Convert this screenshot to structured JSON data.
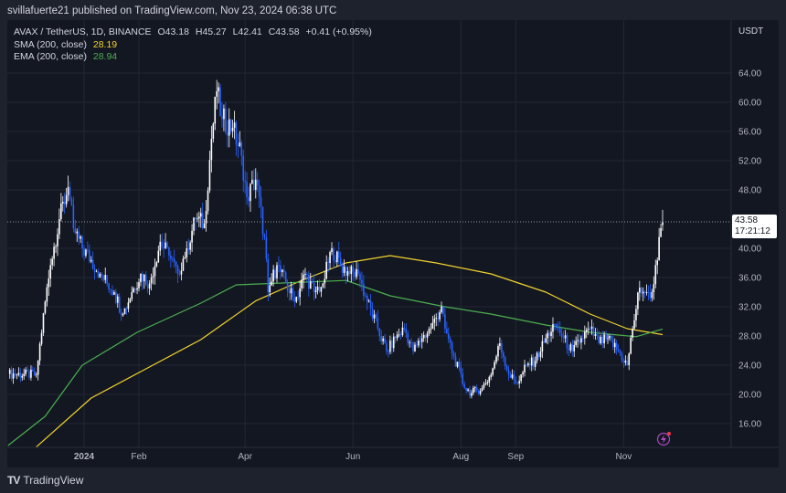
{
  "header": {
    "publish_text": "svillafuerte21 published on TradingView.com, Nov 23, 2024 06:38 UTC"
  },
  "legend": {
    "symbol": "AVAX / TetherUS, 1D, BINANCE",
    "open": "O43.18",
    "high": "H45.27",
    "low": "L42.41",
    "close": "C43.58",
    "change": "+0.41 (+0.95%)",
    "sma_label": "SMA (200, close)",
    "sma_value": "28.19",
    "ema_label": "EMA (200, close)",
    "ema_value": "28.94"
  },
  "price_axis": {
    "currency": "USDT",
    "last_price": "43.58",
    "countdown": "17:21:12"
  },
  "footer": {
    "brand": "TradingView"
  },
  "colors": {
    "background": "#131722",
    "grid": "#232735",
    "up": "#ffffff",
    "down": "#2962ff",
    "sma": "#f2d22e",
    "ema": "#4caf50"
  },
  "icons": [
    "tradingview-logo-icon",
    "lightning-icon"
  ],
  "chart_data": {
    "type": "candlestick",
    "symbol": "AVAX/USDT",
    "timeframe": "1D",
    "ylim": [
      12,
      68
    ],
    "y_ticks": [
      "16.00",
      "20.00",
      "24.00",
      "28.00",
      "32.00",
      "36.00",
      "40.00",
      "48.00",
      "52.00",
      "56.00",
      "60.00",
      "64.00"
    ],
    "x_ticks": [
      {
        "label": "2024",
        "date": "2024-01-01"
      },
      {
        "label": "Feb",
        "date": "2024-02-01"
      },
      {
        "label": "Apr",
        "date": "2024-04-01"
      },
      {
        "label": "Jun",
        "date": "2024-06-01"
      },
      {
        "label": "Aug",
        "date": "2024-08-01"
      },
      {
        "label": "Sep",
        "date": "2024-09-01"
      },
      {
        "label": "Nov",
        "date": "2024-11-01"
      }
    ],
    "grid": true,
    "price_path": [
      [
        "2023-11-19",
        22.8
      ],
      [
        "2023-12-05",
        22.7
      ],
      [
        "2023-12-10",
        32.7
      ],
      [
        "2023-12-13",
        37.7
      ],
      [
        "2023-12-18",
        44
      ],
      [
        "2023-12-23",
        48.4
      ],
      [
        "2023-12-26",
        42.7
      ],
      [
        "2023-12-31",
        40
      ],
      [
        "2024-01-05",
        38.4
      ],
      [
        "2024-01-10",
        36.5
      ],
      [
        "2024-01-18",
        34
      ],
      [
        "2024-01-23",
        31
      ],
      [
        "2024-01-28",
        34
      ],
      [
        "2024-02-02",
        36.5
      ],
      [
        "2024-02-07",
        35.2
      ],
      [
        "2024-02-13",
        40.9
      ],
      [
        "2024-02-18",
        39
      ],
      [
        "2024-02-23",
        36.5
      ],
      [
        "2024-02-28",
        40
      ],
      [
        "2024-03-04",
        44
      ],
      [
        "2024-03-09",
        43.4
      ],
      [
        "2024-03-13",
        55
      ],
      [
        "2024-03-16",
        61.5
      ],
      [
        "2024-03-19",
        57.7
      ],
      [
        "2024-03-25",
        56.5
      ],
      [
        "2024-03-30",
        52.7
      ],
      [
        "2024-04-02",
        47
      ],
      [
        "2024-04-07",
        49.4
      ],
      [
        "2024-04-12",
        41.5
      ],
      [
        "2024-04-14",
        34
      ],
      [
        "2024-04-19",
        37.7
      ],
      [
        "2024-04-24",
        35.2
      ],
      [
        "2024-04-29",
        32.7
      ],
      [
        "2024-05-05",
        36.5
      ],
      [
        "2024-05-10",
        34
      ],
      [
        "2024-05-15",
        35.2
      ],
      [
        "2024-05-20",
        40
      ],
      [
        "2024-05-25",
        37.7
      ],
      [
        "2024-05-30",
        36.5
      ],
      [
        "2024-06-04",
        36.5
      ],
      [
        "2024-06-09",
        32.7
      ],
      [
        "2024-06-15",
        29
      ],
      [
        "2024-06-20",
        25.9
      ],
      [
        "2024-06-25",
        27.7
      ],
      [
        "2024-06-30",
        29
      ],
      [
        "2024-07-05",
        25.9
      ],
      [
        "2024-07-10",
        27.7
      ],
      [
        "2024-07-15",
        29
      ],
      [
        "2024-07-21",
        32
      ],
      [
        "2024-07-23",
        29
      ],
      [
        "2024-07-28",
        25.2
      ],
      [
        "2024-08-03",
        20.9
      ],
      [
        "2024-08-07",
        20.2
      ],
      [
        "2024-08-13",
        20.9
      ],
      [
        "2024-08-18",
        22.7
      ],
      [
        "2024-08-23",
        27
      ],
      [
        "2024-08-28",
        22.7
      ],
      [
        "2024-09-02",
        21.5
      ],
      [
        "2024-09-07",
        24
      ],
      [
        "2024-09-12",
        24.6
      ],
      [
        "2024-09-18",
        27.7
      ],
      [
        "2024-09-23",
        29.6
      ],
      [
        "2024-09-28",
        27.7
      ],
      [
        "2024-10-03",
        25.9
      ],
      [
        "2024-10-08",
        27.7
      ],
      [
        "2024-10-13",
        29
      ],
      [
        "2024-10-18",
        27
      ],
      [
        "2024-10-23",
        27.7
      ],
      [
        "2024-10-29",
        25.9
      ],
      [
        "2024-11-03",
        24
      ],
      [
        "2024-11-06",
        29
      ],
      [
        "2024-11-10",
        34.6
      ],
      [
        "2024-11-14",
        34
      ],
      [
        "2024-11-17",
        34
      ],
      [
        "2024-11-19",
        37.7
      ],
      [
        "2024-11-23",
        43.58
      ]
    ],
    "last_candle": {
      "date": "2024-11-23",
      "open": 43.18,
      "high": 45.27,
      "low": 42.41,
      "close": 43.58
    },
    "series": [
      {
        "name": "SMA (200, close)",
        "points": [
          [
            "2023-12-05",
            12.8
          ],
          [
            "2024-01-05",
            19.5
          ],
          [
            "2024-02-05",
            23.5
          ],
          [
            "2024-03-07",
            27.5
          ],
          [
            "2024-04-07",
            32.8
          ],
          [
            "2024-05-02",
            35.5
          ],
          [
            "2024-05-28",
            38
          ],
          [
            "2024-06-22",
            39
          ],
          [
            "2024-07-18",
            38
          ],
          [
            "2024-08-18",
            36.5
          ],
          [
            "2024-09-18",
            34
          ],
          [
            "2024-10-13",
            31
          ],
          [
            "2024-11-03",
            29
          ],
          [
            "2024-11-23",
            28.19
          ]
        ]
      },
      {
        "name": "EMA (200, close)",
        "points": [
          [
            "2023-11-19",
            13
          ],
          [
            "2023-12-10",
            17
          ],
          [
            "2023-12-31",
            24
          ],
          [
            "2024-01-31",
            28.5
          ],
          [
            "2024-03-07",
            32.5
          ],
          [
            "2024-03-27",
            35
          ],
          [
            "2024-04-27",
            35.3
          ],
          [
            "2024-05-28",
            35.6
          ],
          [
            "2024-06-22",
            33.5
          ],
          [
            "2024-07-23",
            32
          ],
          [
            "2024-08-18",
            31
          ],
          [
            "2024-09-18",
            29.5
          ],
          [
            "2024-10-13",
            28.5
          ],
          [
            "2024-11-08",
            27.9
          ],
          [
            "2024-11-23",
            28.94
          ]
        ]
      }
    ]
  }
}
